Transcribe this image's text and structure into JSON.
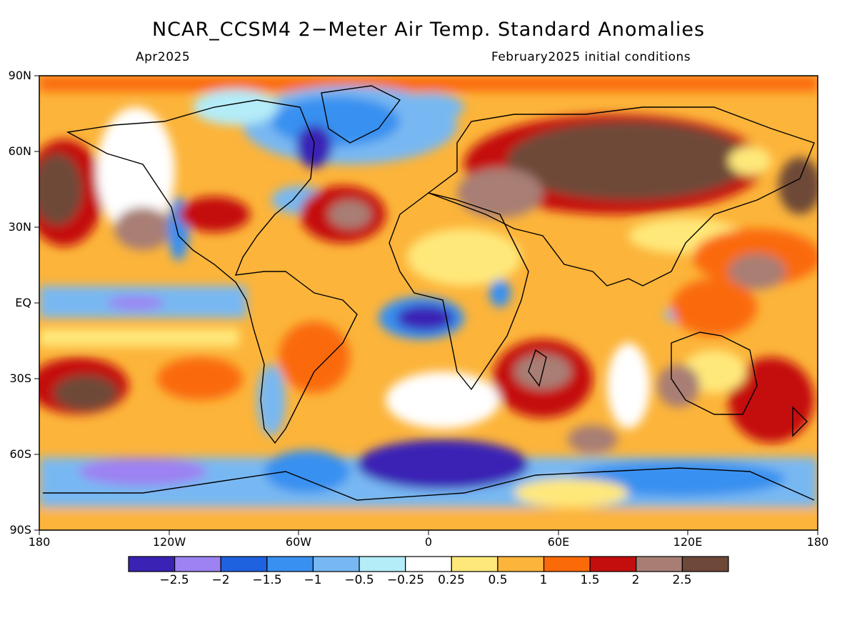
{
  "header": {
    "title": "NCAR_CCSM4 2−Meter Air Temp. Standard Anomalies",
    "valid_month": "Apr2025",
    "init_conditions": "February2025 initial conditions"
  },
  "axes": {
    "lat_labels": [
      "90N",
      "60N",
      "30N",
      "EQ",
      "30S",
      "60S",
      "90S"
    ],
    "lon_labels": [
      "180",
      "120W",
      "60W",
      "0",
      "60E",
      "120E",
      "180"
    ]
  },
  "colorbar": {
    "colors": [
      "#3a22b5",
      "#9c82f2",
      "#1f62e0",
      "#3890f0",
      "#78b8f2",
      "#b4ecf8",
      "#ffffff",
      "#ffe87a",
      "#fcb43a",
      "#fa6a08",
      "#c40d0d",
      "#a87e74",
      "#6e4838"
    ],
    "labels": [
      "−2.5",
      "−2",
      "−1.5",
      "−1",
      "−0.5",
      "−0.25",
      "0.25",
      "0.5",
      "1",
      "1.5",
      "2",
      "2.5"
    ]
  }
}
